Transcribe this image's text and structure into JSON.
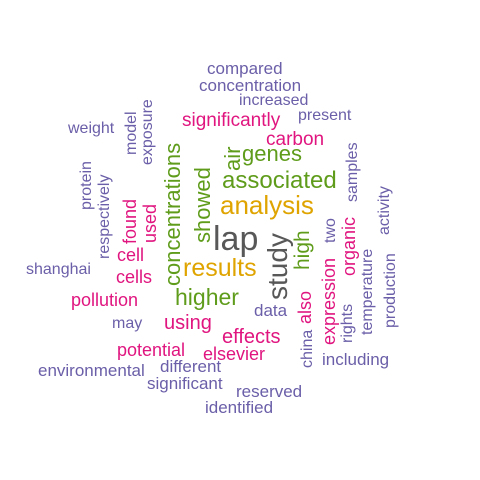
{
  "words": {
    "lap": "lap",
    "study": "study",
    "analysis": "analysis",
    "results": "results",
    "concentrations": "concentrations",
    "higher": "higher",
    "associated": "associated",
    "genes": "genes",
    "air": "air",
    "showed": "showed",
    "high": "high",
    "significantly": "significantly",
    "carbon": "carbon",
    "cell": "cell",
    "cells": "cells",
    "found": "found",
    "used": "used",
    "using": "using",
    "effects": "effects",
    "potential": "potential",
    "elsevier": "elsevier",
    "pollution": "pollution",
    "expression": "expression",
    "organic": "organic",
    "also": "also",
    "compared": "compared",
    "concentration": "concentration",
    "increased": "increased",
    "present": "present",
    "weight": "weight",
    "model": "model",
    "exposure": "exposure",
    "protein": "protein",
    "respectively": "respectively",
    "shanghai": "shanghai",
    "may": "may",
    "data": "data",
    "environmental": "environmental",
    "different": "different",
    "significant": "significant",
    "reserved": "reserved",
    "identified": "identified",
    "including": "including",
    "china": "china",
    "rights": "rights",
    "temperature": "temperature",
    "production": "production",
    "activity": "activity",
    "samples": "samples",
    "two": "two"
  },
  "palette": {
    "purple": "#6a5fa8",
    "magenta": "#e0157f",
    "green": "#5f9c1b",
    "gold": "#dfa400",
    "gray": "#585858"
  }
}
